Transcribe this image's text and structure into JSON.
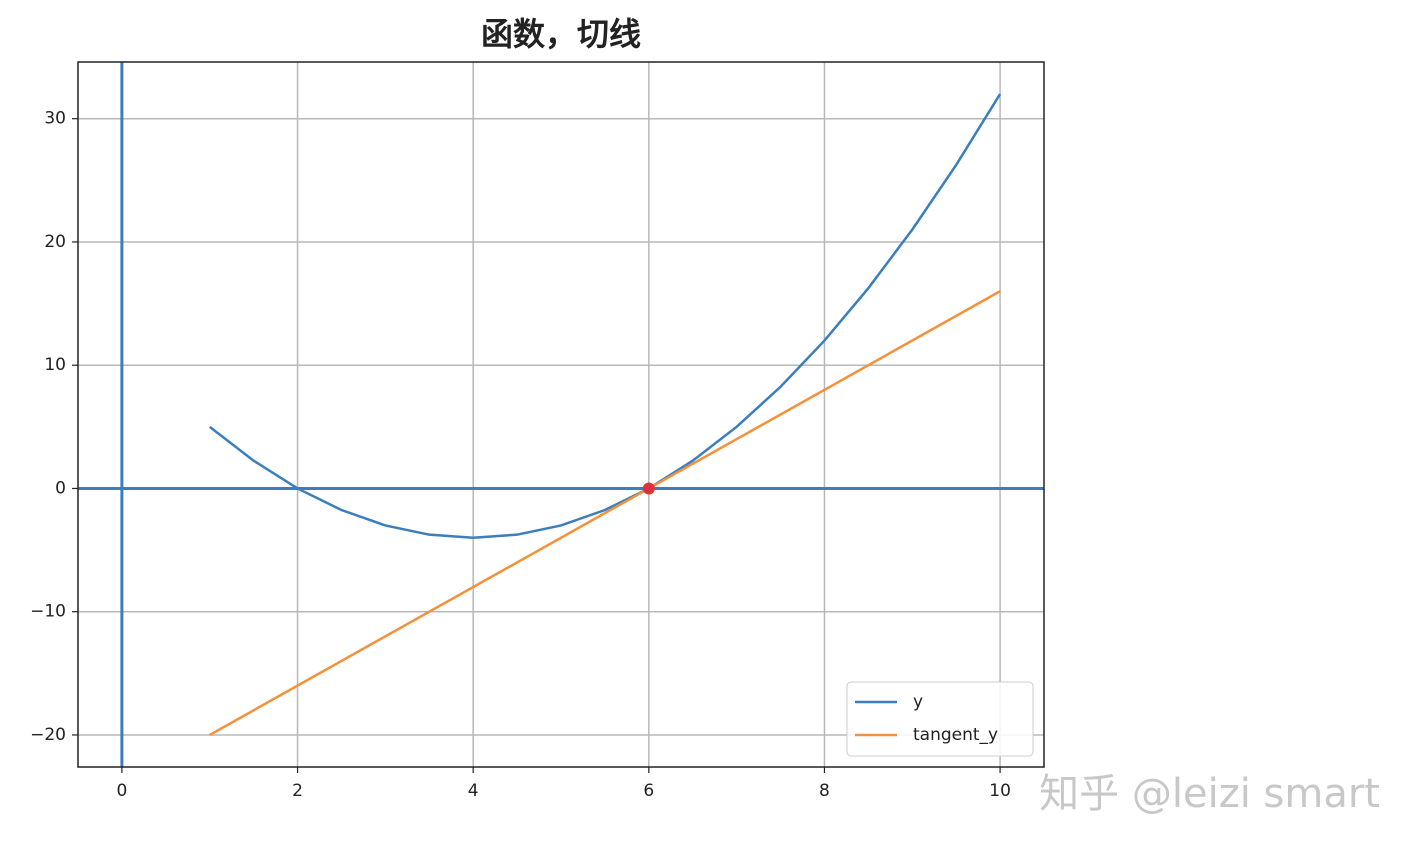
{
  "chart_data": {
    "type": "line",
    "title": "函数，切线",
    "series": [
      {
        "name": "y",
        "color": "#3a7ebf",
        "x": [
          1,
          1.5,
          2,
          2.5,
          3,
          3.5,
          4,
          4.5,
          5,
          5.5,
          6,
          6.5,
          7,
          7.5,
          8,
          8.5,
          9,
          9.5,
          10
        ],
        "values": [
          5,
          2.25,
          0,
          -1.75,
          -3,
          -3.75,
          -4,
          -3.75,
          -3,
          -1.75,
          0,
          2.25,
          5,
          8.25,
          12,
          16.25,
          21,
          26.25,
          32
        ]
      },
      {
        "name": "tangent_y",
        "color": "#f5913a",
        "x": [
          1,
          10
        ],
        "values": [
          -20,
          16
        ]
      }
    ],
    "point": {
      "x": 6,
      "y": 0,
      "color": "#e0303a"
    },
    "axvline": 0,
    "axhline": 0,
    "refline_color": "#3a7ebf",
    "xlim": [
      -0.5,
      10.5
    ],
    "xticks": [
      0,
      2,
      4,
      6,
      8,
      10
    ],
    "ylim": [
      -22.6,
      34.6
    ],
    "yticks": [
      {
        "value": -20,
        "label": "−20"
      },
      {
        "value": -10,
        "label": "−10"
      },
      0,
      10,
      20,
      30
    ],
    "grid": true,
    "legend": "lower right"
  },
  "watermark": "知乎 @leizi smart"
}
